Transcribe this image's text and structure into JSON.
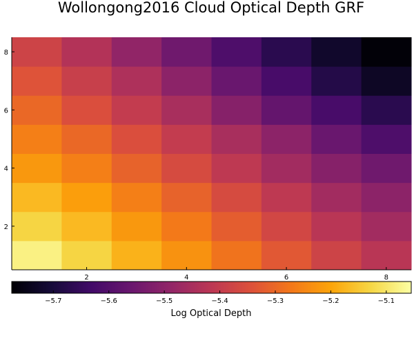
{
  "chart_data": {
    "type": "heatmap",
    "title": "Wollongong2016 Cloud Optical Depth GRF",
    "xlabel": "",
    "ylabel": "",
    "colorbar_label": "Log Optical Depth",
    "colormap": "inferno",
    "x_centers": [
      1,
      2,
      3,
      4,
      5,
      6,
      7,
      8
    ],
    "y_centers": [
      1,
      2,
      3,
      4,
      5,
      6,
      7,
      8
    ],
    "xlim": [
      0.5,
      8.5
    ],
    "ylim": [
      0.5,
      8.5
    ],
    "x_ticks": [
      2,
      4,
      6,
      8
    ],
    "y_ticks": [
      2,
      4,
      6,
      8
    ],
    "clim": [
      -5.775,
      -5.055
    ],
    "colorbar_ticks": [
      -5.7,
      -5.6,
      -5.5,
      -5.4,
      -5.3,
      -5.2,
      -5.1
    ],
    "colorbar_tick_labels": [
      "−5.7",
      "−5.6",
      "−5.5",
      "−5.4",
      "−5.3",
      "−5.2",
      "−5.1"
    ],
    "values": [
      [
        -5.08,
        -5.13,
        -5.18,
        -5.23,
        -5.28,
        -5.33,
        -5.38,
        -5.42
      ],
      [
        -5.13,
        -5.17,
        -5.22,
        -5.27,
        -5.32,
        -5.37,
        -5.42,
        -5.46
      ],
      [
        -5.17,
        -5.21,
        -5.26,
        -5.31,
        -5.36,
        -5.41,
        -5.46,
        -5.5
      ],
      [
        -5.22,
        -5.26,
        -5.31,
        -5.36,
        -5.41,
        -5.46,
        -5.51,
        -5.55
      ],
      [
        -5.26,
        -5.3,
        -5.35,
        -5.4,
        -5.45,
        -5.5,
        -5.56,
        -5.61
      ],
      [
        -5.3,
        -5.35,
        -5.4,
        -5.45,
        -5.51,
        -5.57,
        -5.62,
        -5.67
      ],
      [
        -5.34,
        -5.39,
        -5.44,
        -5.5,
        -5.56,
        -5.62,
        -5.68,
        -5.73
      ],
      [
        -5.38,
        -5.43,
        -5.49,
        -5.55,
        -5.61,
        -5.67,
        -5.72,
        -5.77
      ]
    ]
  }
}
